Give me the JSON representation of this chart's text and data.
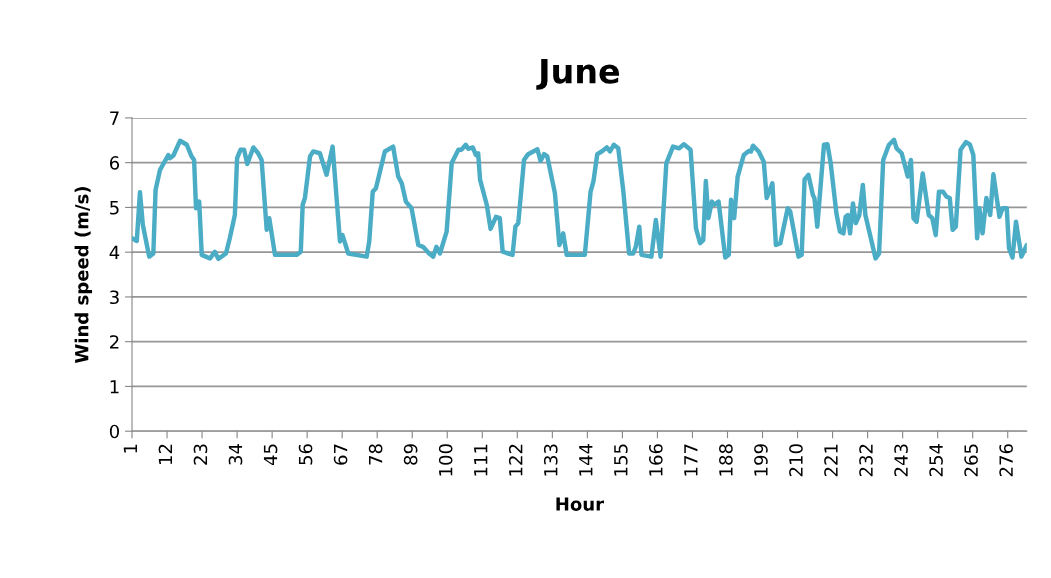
{
  "chart_data": {
    "type": "line",
    "title": "June",
    "xlabel": "Hour",
    "ylabel": "Wind speed (m/s)",
    "xlim": [
      1,
      282
    ],
    "xticks": [
      1,
      12,
      23,
      34,
      45,
      56,
      67,
      78,
      89,
      100,
      111,
      122,
      133,
      144,
      155,
      166,
      177,
      188,
      199,
      210,
      221,
      232,
      243,
      254,
      265,
      276
    ],
    "ylim": [
      0,
      7
    ],
    "yticks": [
      0,
      1,
      2,
      3,
      4,
      5,
      6,
      7
    ],
    "grid": "y",
    "marker": "none",
    "line_style": "solid",
    "series": [
      {
        "color": "#4bacc6",
        "x": [
          1,
          2.5,
          3.5,
          4.4,
          6.4,
          7.7,
          8.4,
          9.8,
          12.4,
          12.9,
          14,
          16.1,
          18.2,
          19.7,
          20.5,
          21.1,
          22.1,
          22.9,
          25.5,
          27,
          28.1,
          30.5,
          31.7,
          33.3,
          34,
          35.1,
          36.2,
          37.2,
          39.1,
          40.6,
          41.7,
          43.3,
          44.1,
          45.9,
          52.7,
          54,
          54.6,
          55.3,
          56.9,
          57.9,
          60,
          62.1,
          64,
          66.3,
          67.1,
          68.9,
          74.7,
          75.5,
          76.6,
          77.6,
          80.4,
          83,
          84.6,
          85.7,
          87,
          88.8,
          90.9,
          92.4,
          94.3,
          95.6,
          96.6,
          97.7,
          99.8,
          101.4,
          103.5,
          104.5,
          105.8,
          106.6,
          108,
          109,
          109.7,
          110.3,
          112.4,
          113.6,
          115.3,
          116.5,
          117.4,
          120.5,
          121.4,
          122.3,
          124.1,
          125.4,
          127,
          128.3,
          129.3,
          130.4,
          131.4,
          133.8,
          135.2,
          136.4,
          137.5,
          143.2,
          145,
          145.9,
          147.1,
          148.5,
          150.1,
          151.1,
          152.3,
          153.7,
          155.3,
          157.1,
          158.4,
          159.2,
          160.3,
          161,
          164.1,
          165.5,
          167,
          168.8,
          170.9,
          172.8,
          174.3,
          176.4,
          178.1,
          179.4,
          180.4,
          181.2,
          182,
          183.1,
          183.8,
          185.2,
          187.3,
          188.4,
          189.1,
          190.1,
          191.2,
          193.1,
          194.7,
          195.4,
          196,
          197.8,
          199.4,
          200.3,
          202.1,
          203.2,
          204.6,
          206.9,
          207.7,
          210.3,
          211.3,
          212.2,
          213.4,
          214.8,
          215.3,
          216.2,
          218.3,
          219.4,
          220.4,
          222.2,
          223.3,
          224.4,
          225.1,
          225.8,
          226.5,
          227.4,
          228.3,
          229.4,
          230.5,
          231.3,
          234.5,
          235.6,
          236.9,
          238.7,
          240.3,
          241.1,
          242.7,
          244.6,
          245.6,
          246.4,
          247.4,
          249.3,
          251.2,
          252.3,
          253.4,
          254.4,
          255.7,
          256.8,
          257.8,
          258.7,
          259.7,
          261.2,
          262.9,
          264.1,
          265.2,
          266.4,
          267.1,
          268.1,
          269.3,
          270.5,
          271.5,
          273.4,
          274.4,
          275.7,
          276.4,
          277.5,
          278.6,
          280.3,
          282
        ],
        "values": [
          4.31,
          4.25,
          5.34,
          4.61,
          3.9,
          3.97,
          5.39,
          5.84,
          6.17,
          6.1,
          6.16,
          6.49,
          6.4,
          6.14,
          6.06,
          4.98,
          5.13,
          3.94,
          3.86,
          4.01,
          3.85,
          3.97,
          4.31,
          4.83,
          6.1,
          6.29,
          6.29,
          5.97,
          6.34,
          6.21,
          6.06,
          4.5,
          4.76,
          3.94,
          3.94,
          4.01,
          5.06,
          5.21,
          6.14,
          6.25,
          6.21,
          5.73,
          6.36,
          4.24,
          4.38,
          3.97,
          3.9,
          4.24,
          5.35,
          5.43,
          6.25,
          6.36,
          5.69,
          5.54,
          5.13,
          4.98,
          4.16,
          4.12,
          3.97,
          3.9,
          4.12,
          3.97,
          4.46,
          5.99,
          6.29,
          6.29,
          6.4,
          6.31,
          6.34,
          6.17,
          6.21,
          5.62,
          5.06,
          4.52,
          4.79,
          4.76,
          4.01,
          3.94,
          4.57,
          4.65,
          6.06,
          6.19,
          6.25,
          6.3,
          6.04,
          6.19,
          6.14,
          5.32,
          4.16,
          4.42,
          3.94,
          3.94,
          5.35,
          5.58,
          6.19,
          6.25,
          6.34,
          6.25,
          6.4,
          6.32,
          5.35,
          3.97,
          3.97,
          4.12,
          4.57,
          3.94,
          3.9,
          4.72,
          3.9,
          5.99,
          6.36,
          6.32,
          6.41,
          6.29,
          4.53,
          4.2,
          4.27,
          5.59,
          4.76,
          5.13,
          5.06,
          5.13,
          3.88,
          3.94,
          5.17,
          4.76,
          5.69,
          6.17,
          6.26,
          6.25,
          6.38,
          6.25,
          6.02,
          5.21,
          5.54,
          4.16,
          4.2,
          4.98,
          4.91,
          3.9,
          3.94,
          5.62,
          5.73,
          5.28,
          5.21,
          4.57,
          6.4,
          6.41,
          5.99,
          4.87,
          4.46,
          4.42,
          4.79,
          4.83,
          4.42,
          5.09,
          4.65,
          4.83,
          5.5,
          4.83,
          3.86,
          3.97,
          6.06,
          6.4,
          6.51,
          6.32,
          6.21,
          5.69,
          6.06,
          4.76,
          4.68,
          5.76,
          4.83,
          4.76,
          4.38,
          5.35,
          5.35,
          5.24,
          5.21,
          4.5,
          4.57,
          6.29,
          6.46,
          6.41,
          6.17,
          4.31,
          4.98,
          4.42,
          5.21,
          4.83,
          5.74,
          4.79,
          4.98,
          4.98,
          4.09,
          3.88,
          4.68,
          3.9,
          4.16
        ]
      }
    ]
  }
}
